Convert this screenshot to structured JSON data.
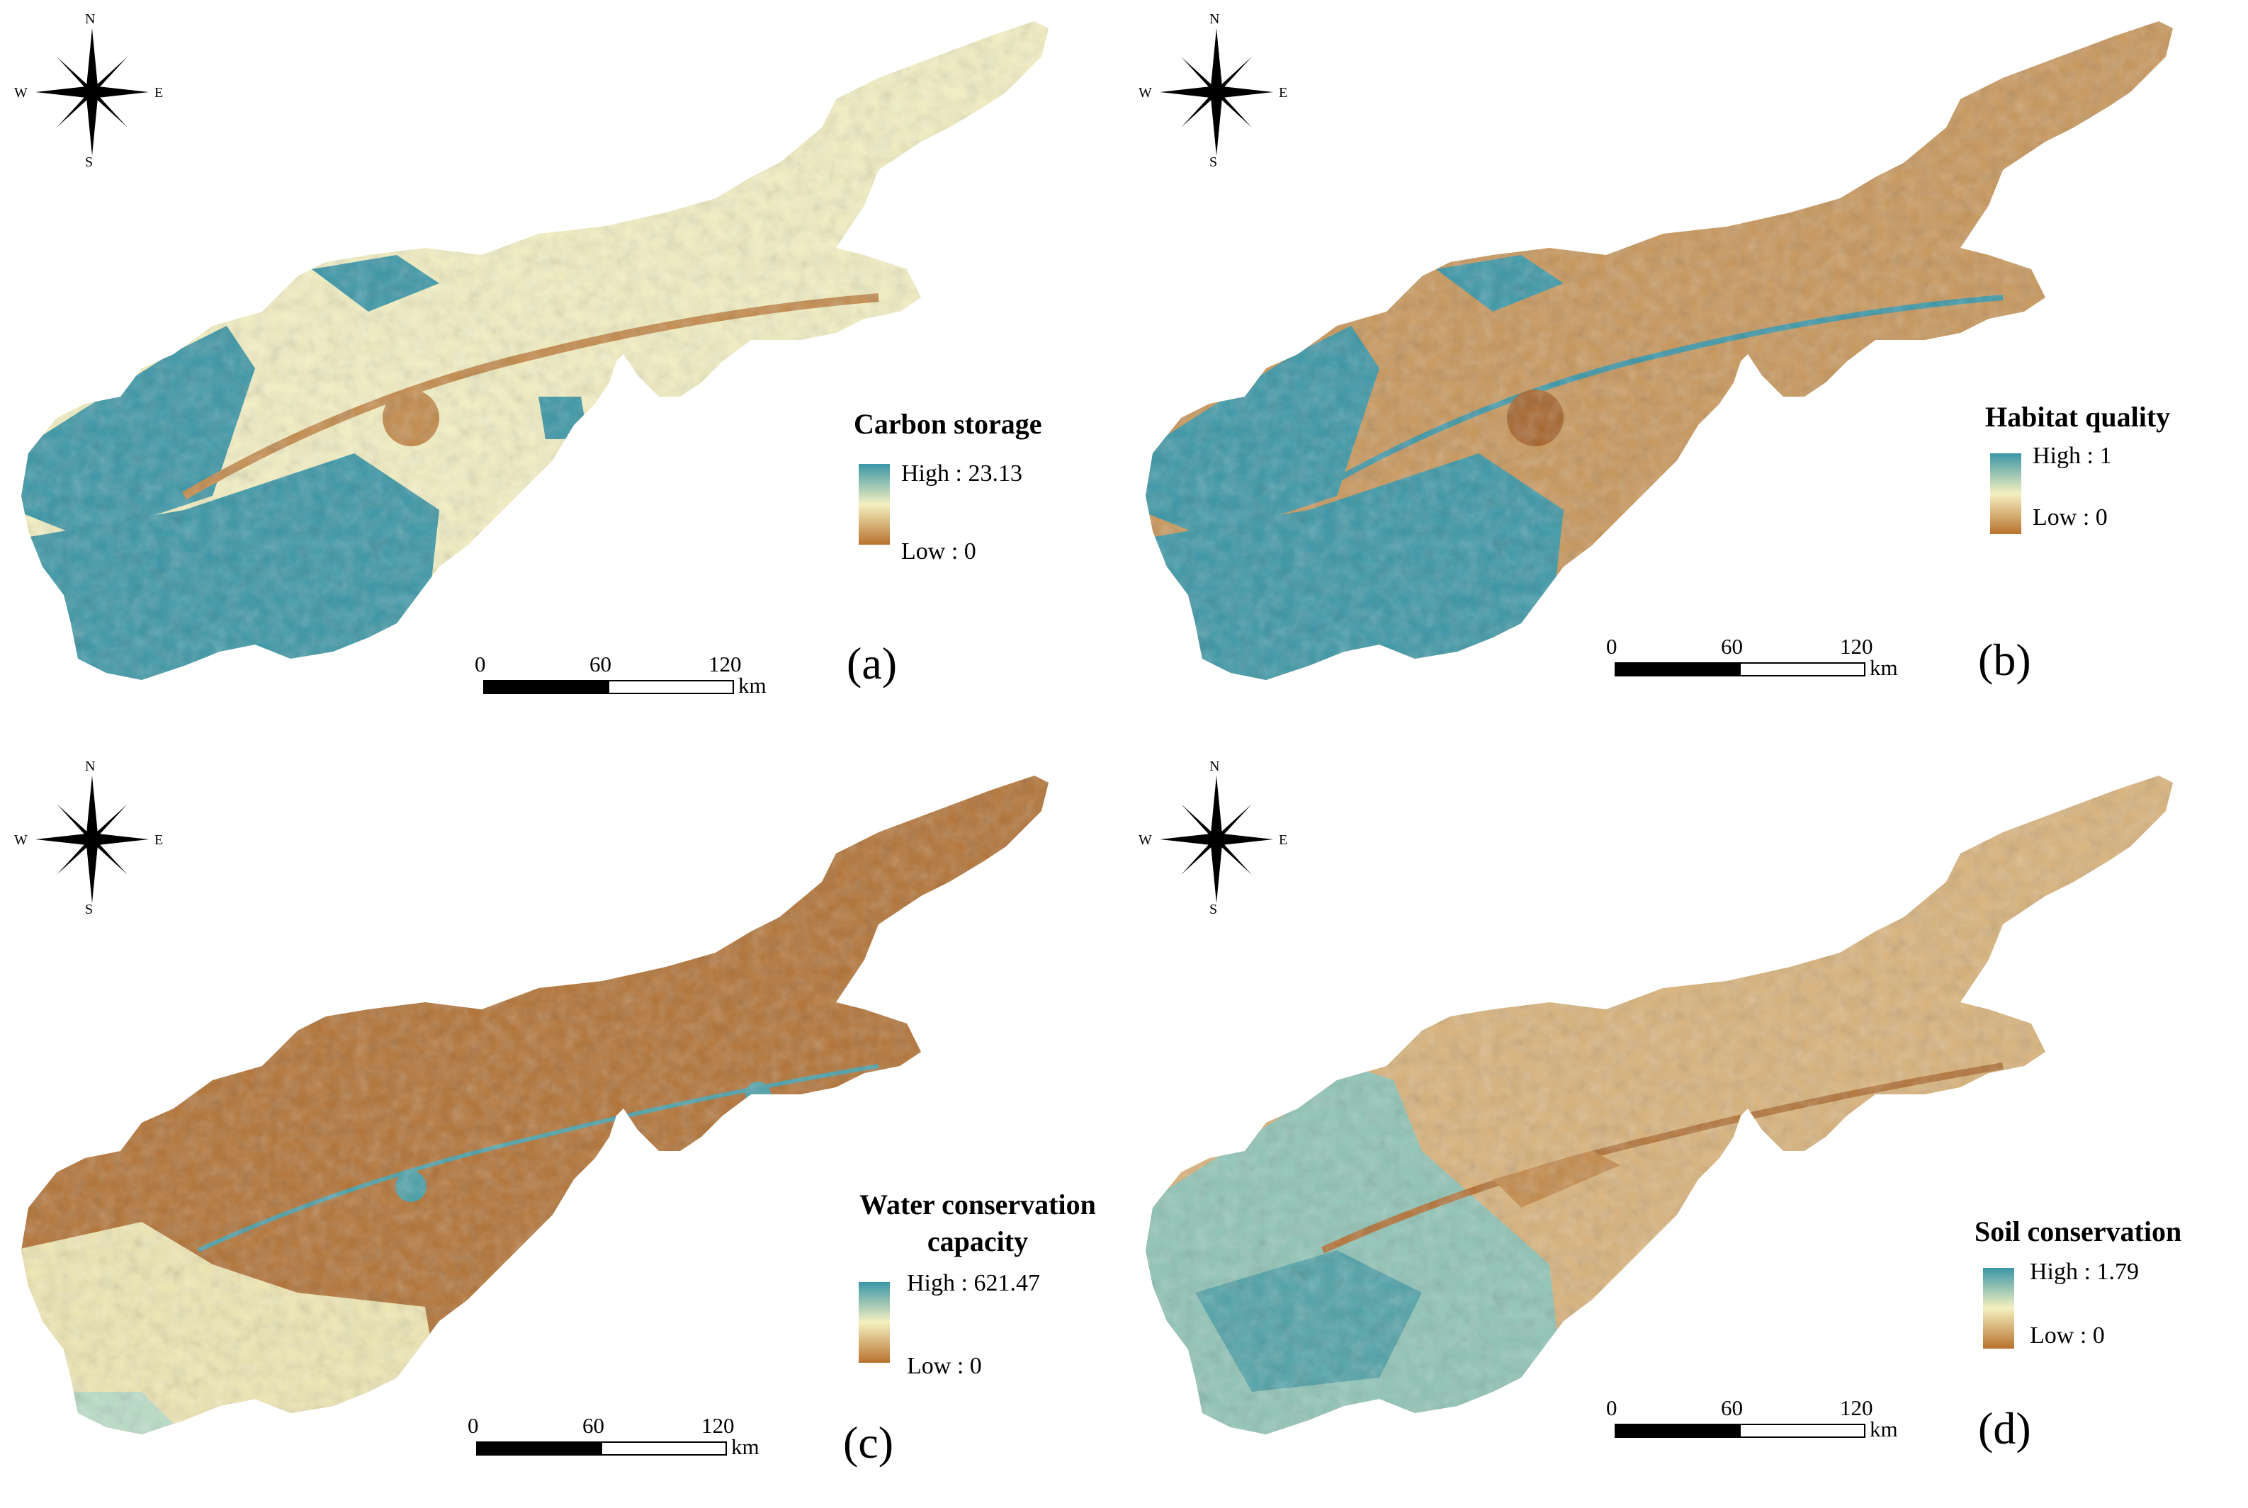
{
  "compass_labels": {
    "n": "N",
    "s": "S",
    "w": "W",
    "e": "E"
  },
  "scale": {
    "ticks": [
      "0",
      "60",
      "120"
    ],
    "unit": "km"
  },
  "palette": {
    "high": "#3a96a6",
    "mid": "#f5f0c0",
    "low": "#b8722e",
    "light": "#f2efc8",
    "tan": "#c8965a",
    "brown": "#b27235"
  },
  "panels": [
    {
      "id": "a",
      "label": "(a)",
      "title": "Carbon storage",
      "high_label": "High : 23.13",
      "low_label": "Low : 0"
    },
    {
      "id": "b",
      "label": "(b)",
      "title": "Habitat quality",
      "high_label": "High : 1",
      "low_label": "Low : 0"
    },
    {
      "id": "c",
      "label": "(c)",
      "title": "Water conservation capacity",
      "high_label": "High : 621.47",
      "low_label": "Low : 0"
    },
    {
      "id": "d",
      "label": "(d)",
      "title": "Soil conservation",
      "high_label": "High : 1.79",
      "low_label": "Low : 0"
    }
  ]
}
